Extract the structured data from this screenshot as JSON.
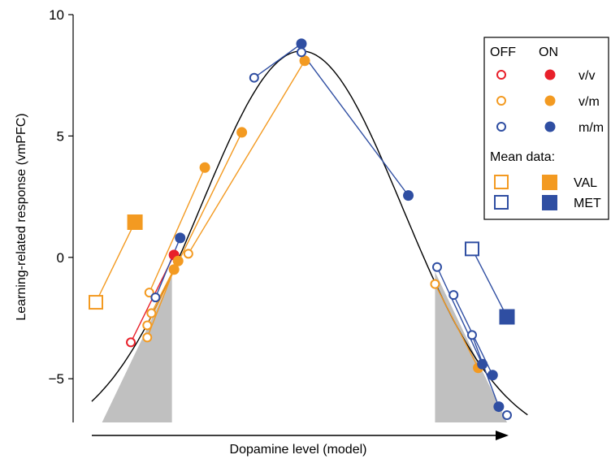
{
  "chart_data": {
    "type": "scatter",
    "title": "",
    "xlabel": "Dopamine level (model)",
    "ylabel": "Learning-related response (vmPFC)",
    "xlim": [
      0,
      1
    ],
    "ylim": [
      -6.8,
      10
    ],
    "yticks": [
      -5,
      0,
      5,
      10
    ],
    "grid": false,
    "legend": {
      "placement": "top-right",
      "col_off": "OFF",
      "col_on": "ON",
      "rows": [
        {
          "label": "v/v",
          "color": "#e8202a",
          "marker": "circle"
        },
        {
          "label": "v/m",
          "color": "#f39a21",
          "marker": "circle"
        },
        {
          "label": "m/m",
          "color": "#2f4ea2",
          "marker": "circle"
        }
      ],
      "mean_header": "Mean data:",
      "mean_rows": [
        {
          "label": "VAL",
          "color": "#f39a21",
          "marker": "square"
        },
        {
          "label": "MET",
          "color": "#2f4ea2",
          "marker": "square"
        }
      ]
    },
    "curve": {
      "name": "model",
      "color": "#000000",
      "peak_x": 0.5,
      "peak_y": 8.5
    },
    "shaded_regions": [
      {
        "color": "#c0c0c0",
        "x_start": 0.015,
        "x_end": 0.185,
        "top_x": 0.185,
        "top_y": -0.8
      },
      {
        "color": "#c0c0c0",
        "x_start": 0.825,
        "x_end": 1.0,
        "top_x": 0.825,
        "top_y": -0.6
      }
    ],
    "series": [
      {
        "group": "v/v",
        "color": "#e8202a",
        "pairs": [
          [
            [
              0.085,
              -3.5
            ],
            [
              0.19,
              0.1
            ]
          ]
        ]
      },
      {
        "group": "v/m",
        "color": "#f39a21",
        "pairs": [
          [
            [
              0.13,
              -1.45
            ],
            [
              0.265,
              3.7
            ]
          ],
          [
            [
              0.125,
              -2.8
            ],
            [
              0.355,
              5.15
            ]
          ],
          [
            [
              0.125,
              -3.3
            ],
            [
              0.19,
              -0.5
            ]
          ],
          [
            [
              0.135,
              -2.3
            ],
            [
              0.2,
              -0.15
            ]
          ],
          [
            [
              0.225,
              0.15
            ],
            [
              0.508,
              8.1
            ]
          ],
          [
            [
              0.825,
              -1.1
            ],
            [
              0.93,
              -4.55
            ]
          ]
        ]
      },
      {
        "group": "m/m",
        "color": "#2f4ea2",
        "pairs": [
          [
            [
              0.145,
              -1.65
            ],
            [
              0.205,
              0.8
            ]
          ],
          [
            [
              0.385,
              7.4
            ],
            [
              0.5,
              8.8
            ]
          ],
          [
            [
              0.5,
              8.45
            ],
            [
              0.76,
              2.55
            ]
          ],
          [
            [
              0.83,
              -0.4
            ],
            [
              0.94,
              -4.4
            ]
          ],
          [
            [
              0.87,
              -1.55
            ],
            [
              0.965,
              -4.85
            ]
          ],
          [
            [
              0.915,
              -3.2
            ],
            [
              0.98,
              -6.15
            ]
          ],
          [
            [
              1.0,
              -6.5
            ],
            [
              1.0,
              -6.5
            ]
          ]
        ]
      }
    ],
    "mean_data": [
      {
        "label": "VAL",
        "color": "#f39a21",
        "off": [
          0.0,
          -1.85
        ],
        "on": [
          0.095,
          1.45
        ]
      },
      {
        "label": "MET",
        "color": "#2f4ea2",
        "off": [
          0.915,
          0.35
        ],
        "on": [
          1.0,
          -2.45
        ]
      }
    ]
  }
}
